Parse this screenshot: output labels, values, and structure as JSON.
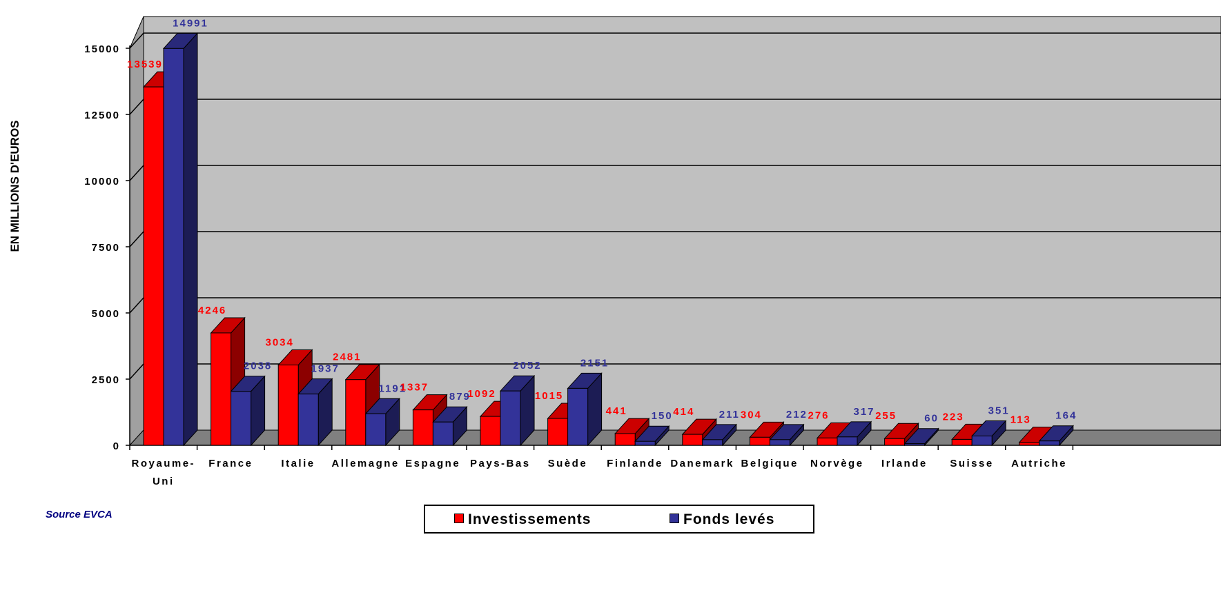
{
  "chart_data": {
    "type": "bar",
    "ylabel": "EN MILLIONS D'EUROS",
    "ylim": [
      0,
      15000
    ],
    "yticks": [
      "0",
      "2500",
      "5000",
      "7500",
      "10000",
      "12500",
      "15000"
    ],
    "ytick_values": [
      0,
      2500,
      5000,
      7500,
      10000,
      12500,
      15000
    ],
    "categories": [
      "Royaume-Uni",
      "France",
      "Italie",
      "Allemagne",
      "Espagne",
      "Pays-Bas",
      "Suède",
      "Finlande",
      "Danemark",
      "Belgique",
      "Norvège",
      "Irlande",
      "Suisse",
      "Autriche"
    ],
    "series": [
      {
        "name": "Investissements",
        "color": "#ff0000",
        "values": [
          13539,
          4246,
          3034,
          2481,
          1337,
          1092,
          1015,
          441,
          414,
          304,
          276,
          255,
          223,
          113
        ]
      },
      {
        "name": "Fonds levés",
        "color": "#333399",
        "values": [
          14991,
          2038,
          1937,
          1191,
          879,
          2052,
          2151,
          150,
          211,
          212,
          317,
          60,
          351,
          164
        ]
      }
    ],
    "grid": true,
    "legend_position": "bottom"
  },
  "source": "Source EVCA",
  "colors": {
    "wall": "#c0c0c0",
    "floor": "#808080",
    "red_label": "#ff0000",
    "blue_label": "#333399"
  }
}
